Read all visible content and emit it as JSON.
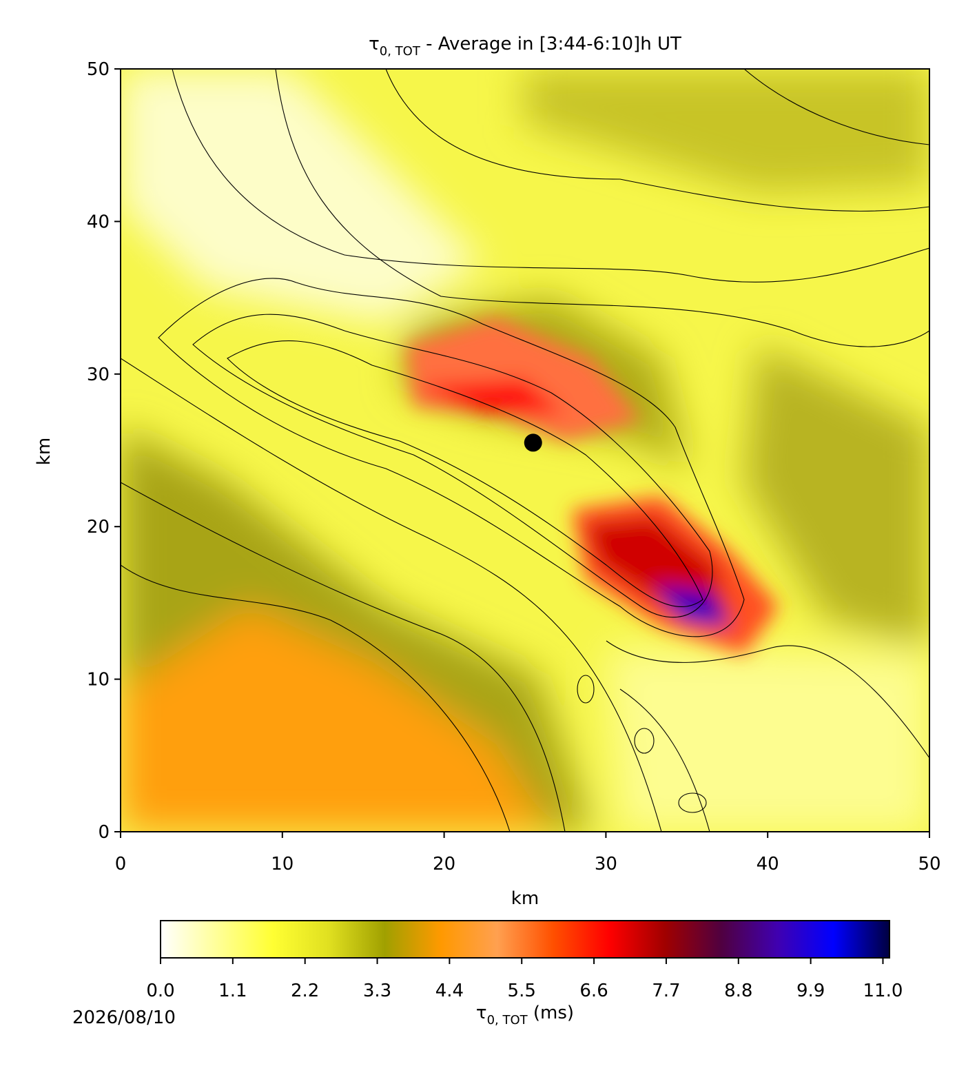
{
  "chart_data": {
    "type": "heatmap",
    "title": {
      "symbol": "τ",
      "subscript": "0, TOT",
      "text": " - Average in [3:44-6:10]h UT"
    },
    "xlabel": "km",
    "ylabel": "km",
    "xlim": [
      0,
      50
    ],
    "ylim": [
      0,
      50
    ],
    "xticks": [
      0,
      10,
      20,
      30,
      40,
      50
    ],
    "yticks": [
      0,
      10,
      20,
      30,
      40,
      50
    ],
    "marker": {
      "x": 25.5,
      "y": 25.5,
      "color": "#000000"
    },
    "colorbar": {
      "label": {
        "symbol": "τ",
        "subscript": "0, TOT",
        "text": " (ms)"
      },
      "lim": [
        0,
        11.1
      ],
      "ticks": [
        {
          "value": 0,
          "label": "0.0"
        },
        1.1,
        2.2,
        3.3,
        4.4,
        5.5,
        6.6,
        7.7,
        8.8,
        9.9,
        {
          "value": 11,
          "label": "11.0"
        }
      ],
      "colors": [
        "#ffffff",
        "#ffff99",
        "#ffff33",
        "#e0e020",
        "#a0a000",
        "#ff9900",
        "#ffa050",
        "#ff5000",
        "#ff0000",
        "#a00000",
        "#500040",
        "#4000b0",
        "#0000ff",
        "#000040"
      ]
    },
    "date": "2026/08/10"
  }
}
